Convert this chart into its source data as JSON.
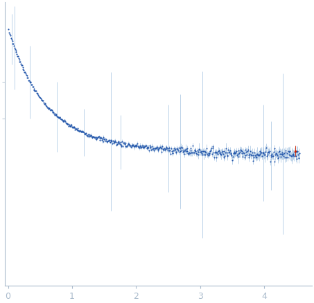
{
  "title": "",
  "xlabel": "",
  "ylabel": "",
  "xlim": [
    -0.05,
    4.75
  ],
  "ylim": [
    -0.9,
    1.05
  ],
  "x_ticks": [
    0,
    1,
    2,
    3,
    4
  ],
  "dot_color": "#2255aa",
  "errorbar_color": "#99bbdd",
  "red_dot_color": "#cc2200",
  "background_color": "#ffffff",
  "axis_color": "#aabbcc",
  "n_points": 500,
  "q_max": 4.55,
  "figsize": [
    4.53,
    4.37
  ],
  "dpi": 100
}
